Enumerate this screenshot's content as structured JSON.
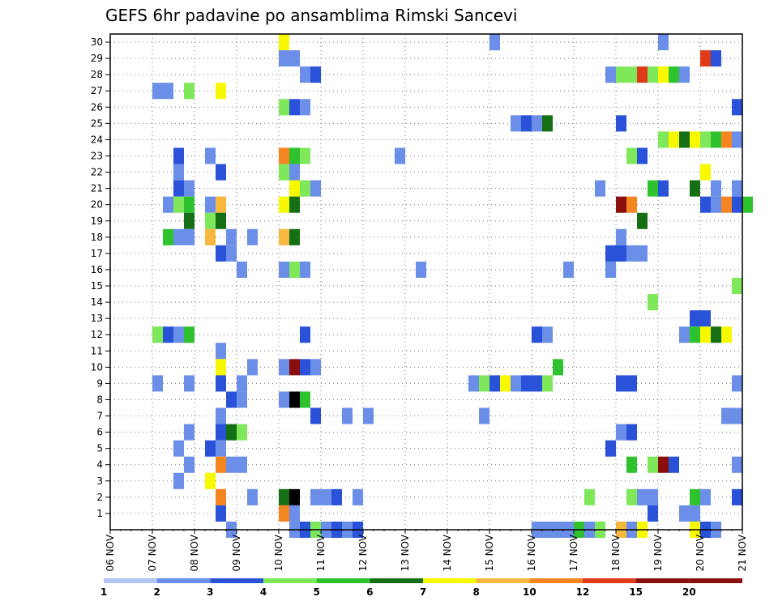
{
  "chart_data": {
    "type": "heatmap",
    "title": "GEFS 6hr padavine po ansamblima Rimski Sancevi",
    "xlabel": "",
    "ylabel": "",
    "grid": true,
    "x_labels": [
      "06 NOV",
      "07 NOV",
      "08 NOV",
      "09 NOV",
      "10 NOV",
      "11 NOV",
      "12 NOV",
      "13 NOV",
      "14 NOV",
      "15 NOV",
      "16 NOV",
      "17 NOV",
      "18 NOV",
      "19 NOV",
      "20 NOV",
      "21 NOV"
    ],
    "x_range_steps": [
      0,
      60
    ],
    "y_labels": [
      "1",
      "2",
      "3",
      "4",
      "5",
      "6",
      "7",
      "8",
      "9",
      "10",
      "11",
      "12",
      "13",
      "14",
      "15",
      "16",
      "17",
      "18",
      "19",
      "20",
      "21",
      "22",
      "23",
      "24",
      "25",
      "26",
      "27",
      "28",
      "29",
      "30"
    ],
    "y_range": [
      0,
      30
    ],
    "legend": {
      "colors": [
        "#b0c4f5",
        "#6b8fe8",
        "#2a52d9",
        "#7fe85a",
        "#2ec22e",
        "#157015",
        "#f8f800",
        "#f8b840",
        "#f58520",
        "#e03a1a",
        "#8a0e0e"
      ],
      "thresholds": [
        "1",
        "2",
        "3",
        "4",
        "5",
        "6",
        "7",
        "8",
        "10",
        "12",
        "15",
        "20"
      ]
    },
    "cells": [
      [
        30,
        16,
        6
      ],
      [
        30,
        36,
        1
      ],
      [
        30,
        52,
        1
      ],
      [
        29,
        16,
        1
      ],
      [
        29,
        17,
        1
      ],
      [
        29,
        56,
        9
      ],
      [
        29,
        57,
        2
      ],
      [
        28,
        18,
        1
      ],
      [
        28,
        19,
        2
      ],
      [
        28,
        47,
        1
      ],
      [
        28,
        48,
        3
      ],
      [
        28,
        49,
        3
      ],
      [
        28,
        50,
        9
      ],
      [
        28,
        51,
        3
      ],
      [
        28,
        52,
        6
      ],
      [
        28,
        53,
        4
      ],
      [
        28,
        54,
        1
      ],
      [
        27,
        4,
        1
      ],
      [
        27,
        5,
        1
      ],
      [
        27,
        7,
        3
      ],
      [
        27,
        10,
        6
      ],
      [
        26,
        16,
        3
      ],
      [
        26,
        17,
        2
      ],
      [
        26,
        18,
        1
      ],
      [
        26,
        59,
        2
      ],
      [
        25,
        38,
        1
      ],
      [
        25,
        39,
        2
      ],
      [
        25,
        40,
        1
      ],
      [
        25,
        41,
        5
      ],
      [
        25,
        48,
        2
      ],
      [
        24,
        52,
        3
      ],
      [
        24,
        53,
        6
      ],
      [
        24,
        54,
        5
      ],
      [
        24,
        55,
        6
      ],
      [
        24,
        56,
        3
      ],
      [
        24,
        57,
        4
      ],
      [
        24,
        58,
        8
      ],
      [
        24,
        59,
        1
      ],
      [
        23,
        6,
        2
      ],
      [
        23,
        9,
        1
      ],
      [
        23,
        16,
        8
      ],
      [
        23,
        17,
        4
      ],
      [
        23,
        18,
        3
      ],
      [
        23,
        27,
        1
      ],
      [
        23,
        49,
        3
      ],
      [
        23,
        50,
        2
      ],
      [
        22,
        6,
        1
      ],
      [
        22,
        10,
        2
      ],
      [
        22,
        16,
        3
      ],
      [
        22,
        17,
        1
      ],
      [
        22,
        56,
        6
      ],
      [
        21,
        6,
        2
      ],
      [
        21,
        7,
        1
      ],
      [
        21,
        17,
        6
      ],
      [
        21,
        18,
        3
      ],
      [
        21,
        19,
        1
      ],
      [
        21,
        46,
        1
      ],
      [
        21,
        51,
        4
      ],
      [
        21,
        52,
        2
      ],
      [
        21,
        55,
        5
      ],
      [
        21,
        57,
        1
      ],
      [
        21,
        59,
        1
      ],
      [
        20,
        5,
        1
      ],
      [
        20,
        6,
        3
      ],
      [
        20,
        7,
        4
      ],
      [
        20,
        9,
        1
      ],
      [
        20,
        10,
        7
      ],
      [
        20,
        16,
        6
      ],
      [
        20,
        17,
        5
      ],
      [
        20,
        48,
        10
      ],
      [
        20,
        49,
        8
      ],
      [
        20,
        56,
        2
      ],
      [
        20,
        57,
        1
      ],
      [
        20,
        58,
        8
      ],
      [
        20,
        59,
        2
      ],
      [
        20,
        60,
        4
      ],
      [
        19,
        7,
        5
      ],
      [
        19,
        9,
        3
      ],
      [
        19,
        10,
        5
      ],
      [
        19,
        50,
        5
      ],
      [
        18,
        5,
        4
      ],
      [
        18,
        6,
        1
      ],
      [
        18,
        7,
        1
      ],
      [
        18,
        9,
        7
      ],
      [
        18,
        11,
        1
      ],
      [
        18,
        13,
        1
      ],
      [
        18,
        16,
        7
      ],
      [
        18,
        17,
        5
      ],
      [
        18,
        48,
        1
      ],
      [
        17,
        10,
        2
      ],
      [
        17,
        11,
        1
      ],
      [
        17,
        47,
        2
      ],
      [
        17,
        48,
        2
      ],
      [
        17,
        49,
        1
      ],
      [
        17,
        50,
        1
      ],
      [
        16,
        12,
        1
      ],
      [
        16,
        16,
        1
      ],
      [
        16,
        17,
        3
      ],
      [
        16,
        18,
        1
      ],
      [
        16,
        29,
        1
      ],
      [
        16,
        43,
        1
      ],
      [
        16,
        47,
        1
      ],
      [
        15,
        59,
        3
      ],
      [
        14,
        51,
        3
      ],
      [
        13,
        55,
        2
      ],
      [
        13,
        56,
        2
      ],
      [
        12,
        4,
        3
      ],
      [
        12,
        5,
        2
      ],
      [
        12,
        6,
        1
      ],
      [
        12,
        7,
        4
      ],
      [
        12,
        18,
        2
      ],
      [
        12,
        40,
        2
      ],
      [
        12,
        41,
        1
      ],
      [
        12,
        54,
        1
      ],
      [
        12,
        55,
        4
      ],
      [
        12,
        56,
        6
      ],
      [
        12,
        57,
        5
      ],
      [
        12,
        58,
        6
      ],
      [
        11,
        10,
        1
      ],
      [
        10,
        10,
        6
      ],
      [
        10,
        13,
        1
      ],
      [
        10,
        16,
        1
      ],
      [
        10,
        17,
        10
      ],
      [
        10,
        18,
        2
      ],
      [
        10,
        19,
        1
      ],
      [
        10,
        42,
        4
      ],
      [
        9,
        4,
        1
      ],
      [
        9,
        7,
        1
      ],
      [
        9,
        10,
        2
      ],
      [
        9,
        12,
        1
      ],
      [
        9,
        34,
        1
      ],
      [
        9,
        35,
        3
      ],
      [
        9,
        36,
        2
      ],
      [
        9,
        37,
        6
      ],
      [
        9,
        38,
        1
      ],
      [
        9,
        39,
        2
      ],
      [
        9,
        40,
        2
      ],
      [
        9,
        41,
        3
      ],
      [
        9,
        48,
        2
      ],
      [
        9,
        49,
        2
      ],
      [
        9,
        59,
        1
      ],
      [
        8,
        11,
        2
      ],
      [
        8,
        12,
        1
      ],
      [
        8,
        16,
        1
      ],
      [
        8,
        17,
        11
      ],
      [
        8,
        18,
        4
      ],
      [
        7,
        10,
        1
      ],
      [
        7,
        19,
        2
      ],
      [
        7,
        22,
        1
      ],
      [
        7,
        24,
        1
      ],
      [
        7,
        35,
        1
      ],
      [
        7,
        58,
        1
      ],
      [
        7,
        59,
        1
      ],
      [
        6,
        7,
        1
      ],
      [
        6,
        10,
        2
      ],
      [
        6,
        11,
        5
      ],
      [
        6,
        12,
        3
      ],
      [
        6,
        48,
        1
      ],
      [
        6,
        49,
        2
      ],
      [
        5,
        6,
        1
      ],
      [
        5,
        9,
        2
      ],
      [
        5,
        10,
        1
      ],
      [
        5,
        47,
        2
      ],
      [
        4,
        7,
        1
      ],
      [
        4,
        10,
        8
      ],
      [
        4,
        11,
        1
      ],
      [
        4,
        12,
        1
      ],
      [
        4,
        49,
        4
      ],
      [
        4,
        51,
        3
      ],
      [
        4,
        52,
        10
      ],
      [
        4,
        53,
        2
      ],
      [
        4,
        59,
        1
      ],
      [
        3,
        6,
        1
      ],
      [
        3,
        9,
        6
      ],
      [
        2,
        10,
        8
      ],
      [
        2,
        13,
        1
      ],
      [
        2,
        16,
        5
      ],
      [
        2,
        17,
        11
      ],
      [
        2,
        19,
        1
      ],
      [
        2,
        20,
        1
      ],
      [
        2,
        21,
        2
      ],
      [
        2,
        23,
        1
      ],
      [
        2,
        45,
        3
      ],
      [
        2,
        49,
        3
      ],
      [
        2,
        50,
        1
      ],
      [
        2,
        51,
        1
      ],
      [
        2,
        55,
        4
      ],
      [
        2,
        56,
        1
      ],
      [
        2,
        59,
        2
      ],
      [
        1,
        10,
        2
      ],
      [
        1,
        16,
        8
      ],
      [
        1,
        17,
        1
      ],
      [
        1,
        51,
        2
      ],
      [
        1,
        54,
        1
      ],
      [
        1,
        55,
        1
      ],
      [
        0,
        11,
        1
      ],
      [
        0,
        17,
        1
      ],
      [
        0,
        18,
        2
      ],
      [
        0,
        19,
        3
      ],
      [
        0,
        20,
        1
      ],
      [
        0,
        21,
        2
      ],
      [
        0,
        22,
        1
      ],
      [
        0,
        23,
        2
      ],
      [
        0,
        40,
        1
      ],
      [
        0,
        41,
        1
      ],
      [
        0,
        42,
        1
      ],
      [
        0,
        43,
        1
      ],
      [
        0,
        44,
        4
      ],
      [
        0,
        45,
        1
      ],
      [
        0,
        46,
        3
      ],
      [
        0,
        48,
        7
      ],
      [
        0,
        49,
        1
      ],
      [
        0,
        50,
        6
      ],
      [
        0,
        55,
        6
      ],
      [
        0,
        56,
        2
      ],
      [
        0,
        57,
        1
      ]
    ]
  }
}
